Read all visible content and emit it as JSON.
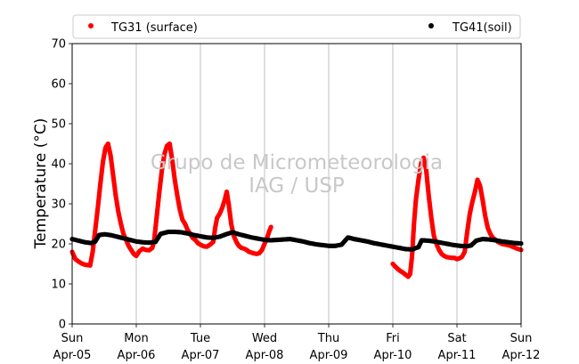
{
  "chart_data": {
    "type": "scatter",
    "ylabel": "Temperature (°C)",
    "xlabel": "",
    "title": "",
    "ylim": [
      0,
      70
    ],
    "xlim": [
      0,
      7
    ],
    "yticks": [
      0,
      10,
      20,
      30,
      40,
      50,
      60,
      70
    ],
    "xticks": [
      {
        "day": "Sun",
        "date": "Apr-05"
      },
      {
        "day": "Mon",
        "date": "Apr-06"
      },
      {
        "day": "Tue",
        "date": "Apr-07"
      },
      {
        "day": "Wed",
        "date": "Apr-08"
      },
      {
        "day": "Thu",
        "date": "Apr-09"
      },
      {
        "day": "Fri",
        "date": "Apr-10"
      },
      {
        "day": "Sat",
        "date": "Apr-11"
      },
      {
        "day": "Sun",
        "date": "Apr-12"
      }
    ],
    "grid": "x-only",
    "legend_position": "top",
    "watermark": [
      "Grupo de Micrometeorologia",
      "IAG / USP"
    ],
    "series": [
      {
        "name": "TG31 (surface)",
        "color": "#ff0000",
        "segments": [
          [
            [
              0.0,
              18
            ],
            [
              0.05,
              16.2
            ],
            [
              0.1,
              15.6
            ],
            [
              0.15,
              15.1
            ],
            [
              0.2,
              14.8
            ],
            [
              0.28,
              14.6
            ],
            [
              0.32,
              18
            ],
            [
              0.36,
              23.5
            ],
            [
              0.4,
              29
            ],
            [
              0.44,
              35
            ],
            [
              0.48,
              40.5
            ],
            [
              0.52,
              44
            ],
            [
              0.56,
              45
            ],
            [
              0.6,
              42
            ],
            [
              0.64,
              37
            ],
            [
              0.68,
              32
            ],
            [
              0.72,
              28
            ],
            [
              0.76,
              25
            ],
            [
              0.8,
              22.5
            ],
            [
              0.84,
              21
            ],
            [
              0.88,
              19.5
            ],
            [
              0.92,
              18.5
            ],
            [
              0.96,
              17.5
            ],
            [
              1.0,
              17
            ],
            [
              1.05,
              18.2
            ],
            [
              1.1,
              18.8
            ],
            [
              1.15,
              18.5
            ],
            [
              1.2,
              18.4
            ],
            [
              1.25,
              19
            ],
            [
              1.28,
              21
            ],
            [
              1.32,
              27
            ],
            [
              1.36,
              33
            ],
            [
              1.4,
              38.5
            ],
            [
              1.44,
              42.5
            ],
            [
              1.48,
              44.5
            ],
            [
              1.52,
              45
            ],
            [
              1.56,
              41
            ],
            [
              1.6,
              36
            ],
            [
              1.64,
              32
            ],
            [
              1.68,
              28.5
            ],
            [
              1.72,
              26
            ],
            [
              1.76,
              25
            ],
            [
              1.8,
              23.5
            ],
            [
              1.84,
              22.5
            ],
            [
              1.88,
              21.5
            ],
            [
              1.92,
              21
            ],
            [
              1.96,
              20.2
            ],
            [
              2.0,
              19.8
            ],
            [
              2.05,
              19.4
            ],
            [
              2.1,
              19.3
            ],
            [
              2.15,
              19.8
            ],
            [
              2.2,
              20.5
            ],
            [
              2.23,
              24
            ],
            [
              2.26,
              26.5
            ],
            [
              2.3,
              27.5
            ],
            [
              2.34,
              29
            ],
            [
              2.38,
              31
            ],
            [
              2.41,
              33
            ],
            [
              2.44,
              30
            ],
            [
              2.48,
              25
            ],
            [
              2.52,
              22
            ],
            [
              2.56,
              20.5
            ],
            [
              2.6,
              19.5
            ],
            [
              2.64,
              19
            ],
            [
              2.68,
              18.8
            ],
            [
              2.72,
              18.5
            ],
            [
              2.76,
              18
            ],
            [
              2.8,
              17.8
            ],
            [
              2.84,
              17.6
            ],
            [
              2.88,
              17.5
            ],
            [
              2.92,
              17.7
            ],
            [
              2.96,
              18.5
            ],
            [
              3.0,
              20
            ],
            [
              3.04,
              21.5
            ],
            [
              3.07,
              23
            ],
            [
              3.1,
              24.2
            ]
          ],
          [
            [
              5.0,
              15
            ],
            [
              5.04,
              14.3
            ],
            [
              5.08,
              13.7
            ],
            [
              5.12,
              13.2
            ],
            [
              5.16,
              12.8
            ],
            [
              5.2,
              12.3
            ],
            [
              5.24,
              11.8
            ],
            [
              5.27,
              12.5
            ],
            [
              5.3,
              17
            ],
            [
              5.33,
              25
            ],
            [
              5.36,
              31
            ],
            [
              5.4,
              36
            ],
            [
              5.44,
              40
            ],
            [
              5.48,
              41.5
            ],
            [
              5.52,
              38.5
            ],
            [
              5.56,
              32
            ],
            [
              5.6,
              26.5
            ],
            [
              5.64,
              22
            ],
            [
              5.68,
              20
            ],
            [
              5.72,
              18.5
            ],
            [
              5.76,
              17.5
            ],
            [
              5.8,
              17
            ],
            [
              5.84,
              16.7
            ],
            [
              5.88,
              16.6
            ],
            [
              5.92,
              16.5
            ],
            [
              5.96,
              16.5
            ],
            [
              6.0,
              16.2
            ],
            [
              6.04,
              16.4
            ],
            [
              6.08,
              16.8
            ],
            [
              6.12,
              18
            ],
            [
              6.16,
              23
            ],
            [
              6.2,
              27.5
            ],
            [
              6.24,
              30.5
            ],
            [
              6.28,
              33
            ],
            [
              6.32,
              36
            ],
            [
              6.36,
              34.5
            ],
            [
              6.4,
              31
            ],
            [
              6.44,
              27
            ],
            [
              6.48,
              24
            ],
            [
              6.52,
              22.5
            ],
            [
              6.56,
              21.5
            ],
            [
              6.6,
              21
            ],
            [
              6.64,
              20.5
            ],
            [
              6.7,
              20
            ],
            [
              6.76,
              19.8
            ],
            [
              6.82,
              19.6
            ],
            [
              6.88,
              19.2
            ],
            [
              6.94,
              18.8
            ],
            [
              7.0,
              18.5
            ]
          ]
        ]
      },
      {
        "name": "TG41(soil)",
        "color": "#000000",
        "segments": [
          [
            [
              0.0,
              21.2
            ],
            [
              0.1,
              20.8
            ],
            [
              0.2,
              20.4
            ],
            [
              0.3,
              20.2
            ],
            [
              0.36,
              20.6
            ],
            [
              0.42,
              22.2
            ],
            [
              0.5,
              22.4
            ],
            [
              0.6,
              22.2
            ],
            [
              0.7,
              21.8
            ],
            [
              0.8,
              21.4
            ],
            [
              0.9,
              21
            ],
            [
              1.0,
              20.6
            ],
            [
              1.1,
              20.4
            ],
            [
              1.2,
              20.3
            ],
            [
              1.3,
              20.5
            ],
            [
              1.38,
              22.5
            ],
            [
              1.5,
              23
            ],
            [
              1.6,
              23
            ],
            [
              1.7,
              22.9
            ],
            [
              1.8,
              22.6
            ],
            [
              1.9,
              22.2
            ],
            [
              2.0,
              21.9
            ],
            [
              2.1,
              21.6
            ],
            [
              2.2,
              21.5
            ],
            [
              2.3,
              21.8
            ],
            [
              2.4,
              22.4
            ],
            [
              2.5,
              22.9
            ],
            [
              2.6,
              22.4
            ],
            [
              2.7,
              22
            ],
            [
              2.8,
              21.6
            ],
            [
              2.9,
              21.3
            ],
            [
              3.0,
              21
            ],
            [
              3.1,
              20.9
            ],
            [
              3.2,
              21
            ],
            [
              3.3,
              21.1
            ],
            [
              3.4,
              21.2
            ],
            [
              3.5,
              20.9
            ],
            [
              3.6,
              20.6
            ],
            [
              3.7,
              20.2
            ],
            [
              3.8,
              19.9
            ],
            [
              3.9,
              19.7
            ],
            [
              4.0,
              19.5
            ],
            [
              4.1,
              19.5
            ],
            [
              4.2,
              19.8
            ],
            [
              4.3,
              21.6
            ],
            [
              4.4,
              21.2
            ],
            [
              4.5,
              20.9
            ],
            [
              4.6,
              20.6
            ],
            [
              4.7,
              20.2
            ],
            [
              4.8,
              19.9
            ],
            [
              4.9,
              19.6
            ],
            [
              5.0,
              19.3
            ],
            [
              5.1,
              19
            ],
            [
              5.2,
              18.7
            ],
            [
              5.3,
              18.6
            ],
            [
              5.4,
              19.2
            ],
            [
              5.45,
              20.9
            ],
            [
              5.55,
              20.8
            ],
            [
              5.65,
              20.6
            ],
            [
              5.75,
              20.3
            ],
            [
              5.85,
              20
            ],
            [
              5.95,
              19.7
            ],
            [
              6.05,
              19.5
            ],
            [
              6.15,
              19.4
            ],
            [
              6.22,
              19.6
            ],
            [
              6.3,
              20.8
            ],
            [
              6.4,
              21.2
            ],
            [
              6.5,
              21.1
            ],
            [
              6.6,
              20.9
            ],
            [
              6.7,
              20.6
            ],
            [
              6.8,
              20.4
            ],
            [
              6.9,
              20.2
            ],
            [
              7.0,
              20.1
            ]
          ]
        ]
      }
    ]
  }
}
